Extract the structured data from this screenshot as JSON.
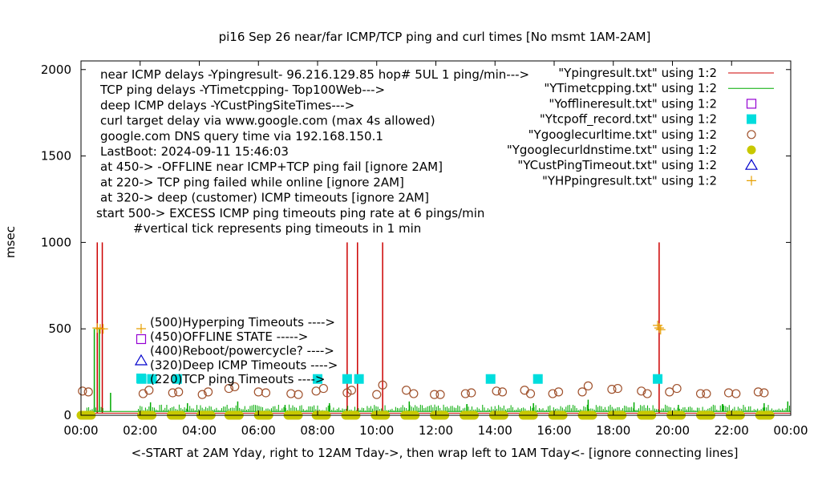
{
  "chart_data": {
    "type": "line",
    "title": "pi16 Sep 26  near/far ICMP/TCP ping and curl times [No msmt 1AM-2AM]",
    "ylabel": "msec",
    "xlabel": "<-START at 2AM Yday, right to 12AM Tday->, then wrap left to 1AM Tday<- [ignore connecting lines]",
    "xlim": [
      0,
      24
    ],
    "ylim": [
      0,
      2050
    ],
    "x_ticks": [
      {
        "value": 0,
        "label": "00:00"
      },
      {
        "value": 2,
        "label": "02:00"
      },
      {
        "value": 4,
        "label": "04:00"
      },
      {
        "value": 6,
        "label": "06:00"
      },
      {
        "value": 8,
        "label": "08:00"
      },
      {
        "value": 10,
        "label": "10:00"
      },
      {
        "value": 12,
        "label": "12:00"
      },
      {
        "value": 14,
        "label": "14:00"
      },
      {
        "value": 16,
        "label": "16:00"
      },
      {
        "value": 18,
        "label": "18:00"
      },
      {
        "value": 20,
        "label": "20:00"
      },
      {
        "value": 22,
        "label": "22:00"
      },
      {
        "value": 24,
        "label": "00:00"
      }
    ],
    "y_ticks": [
      {
        "value": 0,
        "label": "0"
      },
      {
        "value": 500,
        "label": "500"
      },
      {
        "value": 1000,
        "label": "1000"
      },
      {
        "value": 1500,
        "label": "1500"
      },
      {
        "value": 2000,
        "label": "2000"
      }
    ],
    "notes": [
      "near ICMP delays -Ypingresult- 96.216.129.85 hop# 5UL 1 ping/min--->",
      "TCP ping delays -YTimetcpping- Top100Web--->",
      "deep ICMP delays -YCustPingSiteTimes--->",
      "curl target delay via www.google.com (max 4s allowed)",
      "google.com DNS query time via 192.168.150.1",
      "LastBoot: 2024-09-11 15:46:03",
      "at 450-> -OFFLINE near ICMP+TCP ping fail [ignore 2AM]",
      "at 220-> TCP ping failed while online [ignore 2AM]",
      "at 320-> deep (customer) ICMP timeouts [ignore 2AM]",
      "start 500-> EXCESS ICMP ping timeouts ping rate at 6 pings/min",
      "#vertical tick represents ping timeouts in 1 min"
    ],
    "level_labels": [
      "(500)Hyperping Timeouts ---->",
      "(450)OFFLINE STATE ----->",
      "(400)Reboot/powercycle? ---->",
      "(320)Deep ICMP Timeouts ---->",
      "(220)TCP ping Timeouts ---->"
    ],
    "legend_position": "top-right",
    "legend": [
      {
        "label": "\"Ypingresult.txt\" using 1:2",
        "kind": "line",
        "color": "#cc0000"
      },
      {
        "label": "\"YTimetcpping.txt\" using 1:2",
        "kind": "line",
        "color": "#00aa00"
      },
      {
        "label": "\"Yofflineresult.txt\" using 1:2",
        "kind": "open-square",
        "color": "#9400d3"
      },
      {
        "label": "\"Ytcpoff_record.txt\" using 1:2",
        "kind": "filled-square",
        "color": "#00dddd"
      },
      {
        "label": "\"Ygooglecurltime.txt\" using 1:2",
        "kind": "open-circle",
        "color": "#a0522d"
      },
      {
        "label": "\"Ygooglecurldnstime.txt\" using 1:2",
        "kind": "filled-circle",
        "color": "#c8c800"
      },
      {
        "label": "\"YCustPingTimeout.txt\" using 1:2",
        "kind": "open-triangle",
        "color": "#0000cc"
      },
      {
        "label": "\"YHPpingresult.txt\" using 1:2",
        "kind": "plus",
        "color": "#e69f00"
      }
    ],
    "series": [
      {
        "name": "\"Ypingresult.txt\" using 1:2",
        "style": "line",
        "baseline": 12,
        "spikes": [
          {
            "x": 0.55,
            "y": 1000
          },
          {
            "x": 0.72,
            "y": 1000
          },
          {
            "x": 9.0,
            "y": 1000
          },
          {
            "x": 9.35,
            "y": 1000
          },
          {
            "x": 10.2,
            "y": 1000
          },
          {
            "x": 19.55,
            "y": 1000
          }
        ]
      },
      {
        "name": "\"YTimetcpping.txt\" using 1:2",
        "style": "line",
        "baseline": 22,
        "spikes": [
          {
            "x": 0.45,
            "y": 500
          },
          {
            "x": 0.62,
            "y": 500
          },
          {
            "x": 1.0,
            "y": 130
          },
          {
            "x": 2.35,
            "y": 75
          },
          {
            "x": 3.6,
            "y": 70
          },
          {
            "x": 5.3,
            "y": 80
          },
          {
            "x": 6.9,
            "y": 60
          },
          {
            "x": 8.4,
            "y": 70
          },
          {
            "x": 11.1,
            "y": 80
          },
          {
            "x": 13.05,
            "y": 65
          },
          {
            "x": 15.3,
            "y": 70
          },
          {
            "x": 17.15,
            "y": 90
          },
          {
            "x": 18.7,
            "y": 75
          },
          {
            "x": 20.2,
            "y": 60
          },
          {
            "x": 21.7,
            "y": 65
          },
          {
            "x": 23.1,
            "y": 70
          },
          {
            "x": 23.9,
            "y": 80
          }
        ]
      },
      {
        "name": "\"Ytcpoff_record.txt\" using 1:2",
        "style": "filled-square",
        "points": [
          {
            "x": 2.05,
            "y": 210
          },
          {
            "x": 2.4,
            "y": 210
          },
          {
            "x": 3.25,
            "y": 210
          },
          {
            "x": 8.0,
            "y": 210
          },
          {
            "x": 9.0,
            "y": 210
          },
          {
            "x": 9.4,
            "y": 210
          },
          {
            "x": 13.85,
            "y": 210
          },
          {
            "x": 15.45,
            "y": 210
          },
          {
            "x": 19.5,
            "y": 210
          }
        ]
      },
      {
        "name": "\"Ygooglecurltime.txt\" using 1:2",
        "style": "open-circle",
        "points": [
          {
            "x": 0.05,
            "y": 140
          },
          {
            "x": 0.25,
            "y": 135
          },
          {
            "x": 2.1,
            "y": 125
          },
          {
            "x": 2.3,
            "y": 145
          },
          {
            "x": 3.1,
            "y": 130
          },
          {
            "x": 3.3,
            "y": 135
          },
          {
            "x": 4.1,
            "y": 120
          },
          {
            "x": 4.3,
            "y": 135
          },
          {
            "x": 5.0,
            "y": 155
          },
          {
            "x": 5.2,
            "y": 165
          },
          {
            "x": 6.0,
            "y": 135
          },
          {
            "x": 6.25,
            "y": 130
          },
          {
            "x": 7.1,
            "y": 125
          },
          {
            "x": 7.35,
            "y": 120
          },
          {
            "x": 7.95,
            "y": 140
          },
          {
            "x": 8.2,
            "y": 155
          },
          {
            "x": 9.0,
            "y": 130
          },
          {
            "x": 9.15,
            "y": 145
          },
          {
            "x": 10.0,
            "y": 120
          },
          {
            "x": 10.2,
            "y": 175
          },
          {
            "x": 11.0,
            "y": 145
          },
          {
            "x": 11.25,
            "y": 125
          },
          {
            "x": 11.95,
            "y": 120
          },
          {
            "x": 12.15,
            "y": 120
          },
          {
            "x": 13.0,
            "y": 125
          },
          {
            "x": 13.2,
            "y": 130
          },
          {
            "x": 14.05,
            "y": 140
          },
          {
            "x": 14.25,
            "y": 135
          },
          {
            "x": 15.0,
            "y": 145
          },
          {
            "x": 15.2,
            "y": 125
          },
          {
            "x": 15.95,
            "y": 125
          },
          {
            "x": 16.15,
            "y": 135
          },
          {
            "x": 16.95,
            "y": 135
          },
          {
            "x": 17.15,
            "y": 170
          },
          {
            "x": 17.95,
            "y": 150
          },
          {
            "x": 18.15,
            "y": 155
          },
          {
            "x": 18.95,
            "y": 140
          },
          {
            "x": 19.15,
            "y": 125
          },
          {
            "x": 19.9,
            "y": 135
          },
          {
            "x": 20.15,
            "y": 155
          },
          {
            "x": 20.95,
            "y": 125
          },
          {
            "x": 21.15,
            "y": 125
          },
          {
            "x": 21.9,
            "y": 130
          },
          {
            "x": 22.15,
            "y": 125
          },
          {
            "x": 22.9,
            "y": 135
          },
          {
            "x": 23.1,
            "y": 130
          }
        ]
      },
      {
        "name": "\"Ygooglecurldnstime.txt\" using 1:2",
        "style": "filled-circle",
        "band_y": 0,
        "bands": [
          [
            0.0,
            0.35
          ],
          [
            2.05,
            2.4
          ],
          [
            3.05,
            3.4
          ],
          [
            4.05,
            4.4
          ],
          [
            5.0,
            5.35
          ],
          [
            6.0,
            6.35
          ],
          [
            7.0,
            7.35
          ],
          [
            7.95,
            8.3
          ],
          [
            8.95,
            9.3
          ],
          [
            9.95,
            10.3
          ],
          [
            10.95,
            11.3
          ],
          [
            11.95,
            12.3
          ],
          [
            12.95,
            13.3
          ],
          [
            13.95,
            14.3
          ],
          [
            14.95,
            15.3
          ],
          [
            15.95,
            16.3
          ],
          [
            16.95,
            17.3
          ],
          [
            17.95,
            18.3
          ],
          [
            18.95,
            19.3
          ],
          [
            19.95,
            20.3
          ],
          [
            20.95,
            21.3
          ],
          [
            21.95,
            22.3
          ],
          [
            22.95,
            23.3
          ]
        ]
      },
      {
        "name": "\"YHPpingresult.txt\" using 1:2",
        "style": "plus",
        "points": [
          {
            "x": 0.55,
            "y": 505
          },
          {
            "x": 0.65,
            "y": 500
          },
          {
            "x": 0.75,
            "y": 500
          },
          {
            "x": 19.5,
            "y": 520
          },
          {
            "x": 19.55,
            "y": 505
          },
          {
            "x": 19.6,
            "y": 495
          }
        ]
      },
      {
        "name": "\"Yofflineresult.txt\" using 1:2",
        "style": "open-square",
        "points": []
      },
      {
        "name": "\"YCustPingTimeout.txt\" using 1:2",
        "style": "open-triangle",
        "points": []
      }
    ]
  }
}
